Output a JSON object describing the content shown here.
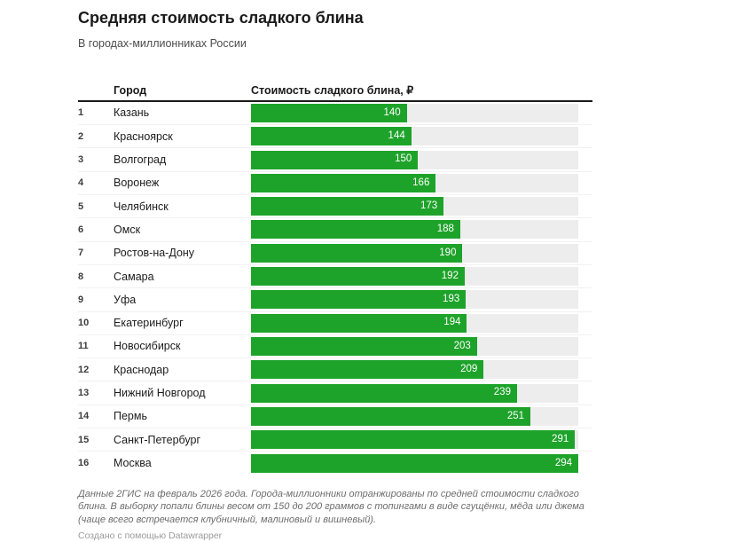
{
  "title": "Средняя стоимость сладкого блина",
  "subtitle": "В городах-миллионниках России",
  "table_headers": {
    "city": "Город",
    "value": "Стоимость сладкого блина, ₽"
  },
  "chart_data": {
    "type": "bar",
    "orientation": "horizontal",
    "title": "Средняя стоимость сладкого блина",
    "subtitle": "В городах-миллионниках России",
    "value_column_label": "Стоимость сладкого блина, ₽",
    "ranks": [
      1,
      2,
      3,
      4,
      5,
      6,
      7,
      8,
      9,
      10,
      11,
      12,
      13,
      14,
      15,
      16
    ],
    "categories": [
      "Казань",
      "Красноярск",
      "Волгоград",
      "Воронеж",
      "Челябинск",
      "Омск",
      "Ростов-на-Дону",
      "Самара",
      "Уфа",
      "Екатеринбург",
      "Новосибирск",
      "Краснодар",
      "Нижний Новгород",
      "Пермь",
      "Санкт-Петербург",
      "Москва"
    ],
    "values": [
      140,
      144,
      150,
      166,
      173,
      188,
      190,
      192,
      193,
      194,
      203,
      209,
      239,
      251,
      291,
      294
    ],
    "xlim": [
      0,
      294
    ],
    "bar_color": "#1ea32a",
    "track_color": "#ededed",
    "value_labels_inside_bars": true
  },
  "footer": {
    "note": "Данные 2ГИС на февраль 2026 года. Города-миллионники отранжированы по средней стоимости сладкого блина. В выборку попали блины весом от 150 до 200 граммов с топингами в виде сгущёнки, мёда или джема (чаще всего встречается клубничный, малиновый и вишневый).",
    "attribution": "Создано с помощью Datawrapper"
  }
}
